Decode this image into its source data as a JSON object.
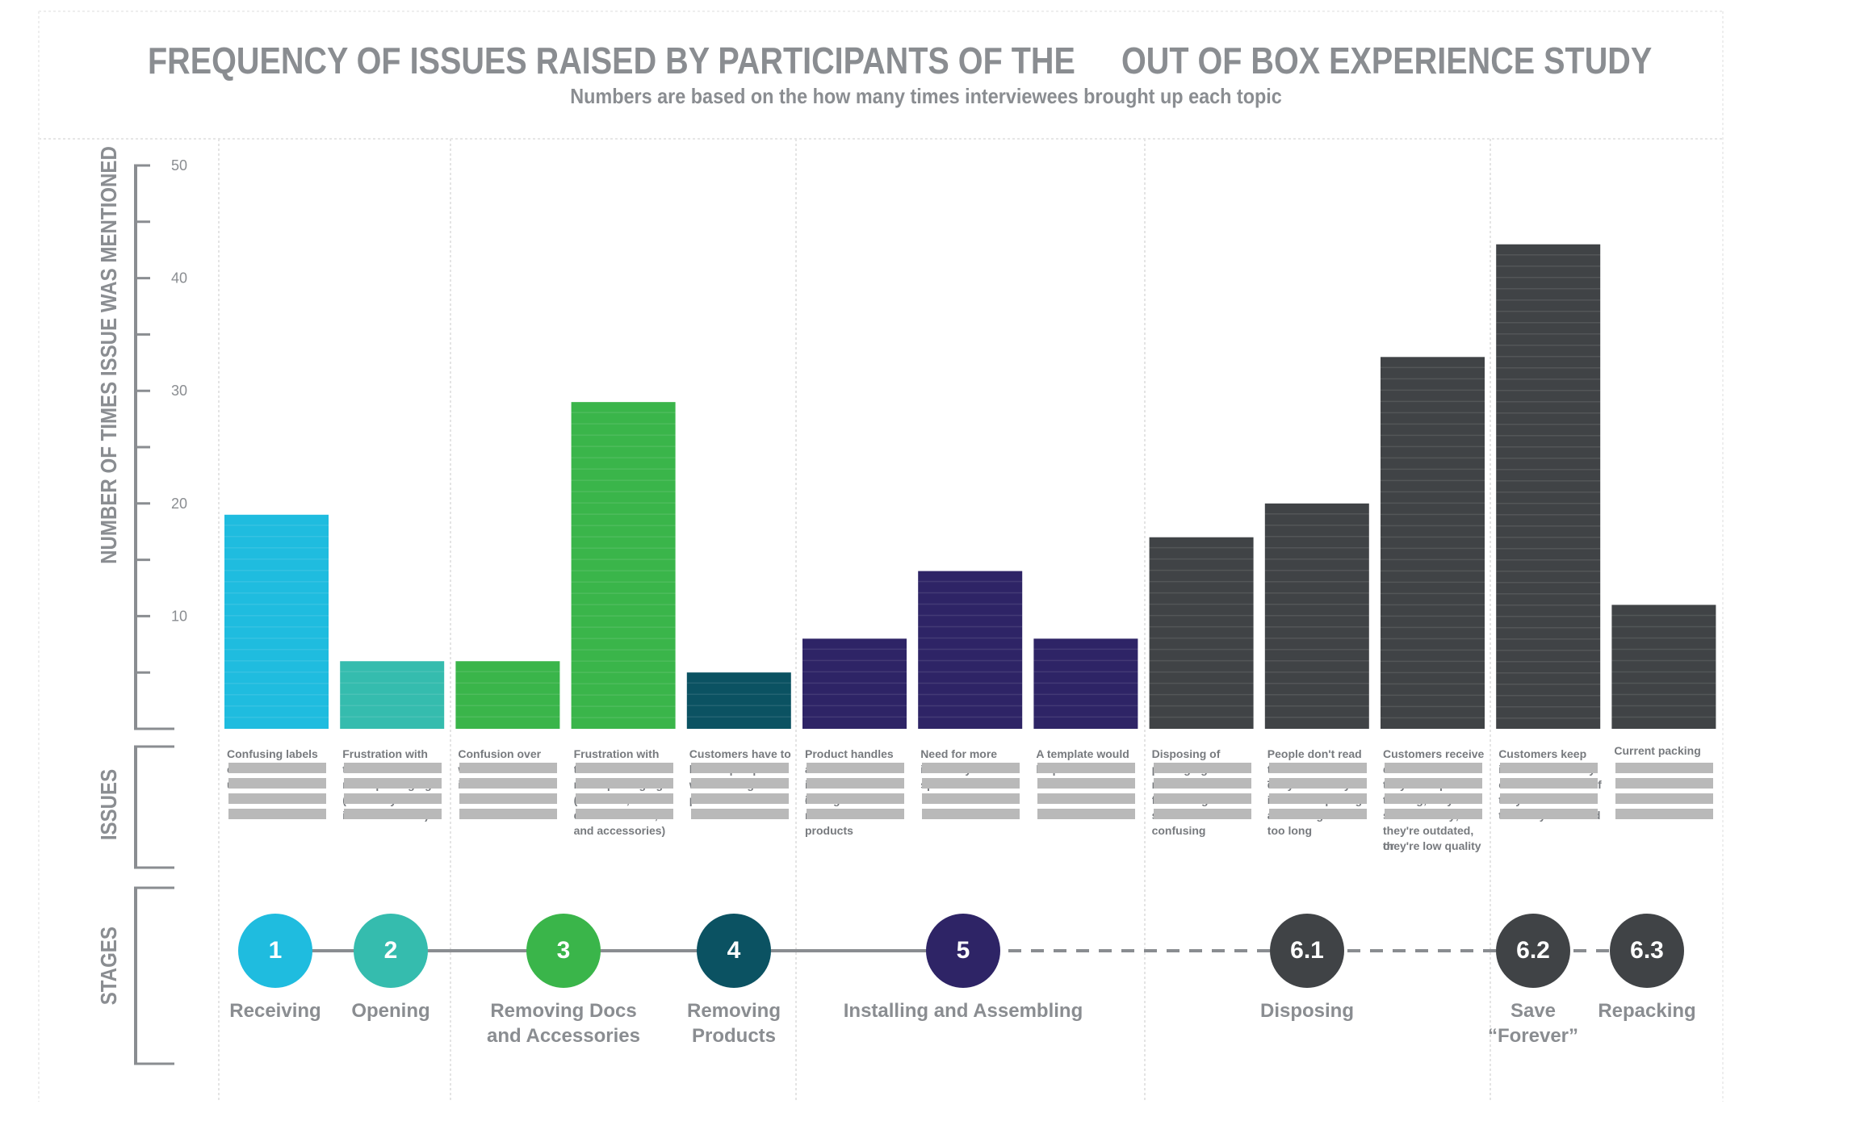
{
  "title": {
    "part1": "FREQUENCY OF ISSUES RAISED BY PARTICIPANTS OF THE",
    "part2": "OUT OF BOX EXPERIENCE STUDY",
    "subtitle": "Numbers are based on the how many times interviewees brought up each topic"
  },
  "section_labels": {
    "y_axis": "NUMBER OF TIMES ISSUE WAS MENTIONED",
    "issues": "ISSUES",
    "stages": "STAGES"
  },
  "colors": {
    "receiving": "#1fbcdf",
    "opening": "#35bcae",
    "docs": "#3ab54a",
    "removing": "#0b5262",
    "installing": "#2e2466",
    "disposing": "#404346",
    "axis": "#8a8d91",
    "redaction": "#b9b9b9"
  },
  "chart_data": {
    "type": "bar",
    "ylabel": "NUMBER OF TIMES ISSUE WAS MENTIONED",
    "ylim": [
      0,
      50
    ],
    "yticks": [
      10,
      20,
      30,
      40,
      50
    ],
    "categories": [
      "Confusing labels",
      "Frustration with too much packaging (too many boxes inside of boxes)",
      "Confusion over",
      "Frustration with too much packaging (Products, documentation, and accessories)",
      "Customers have to hold flaps open while taking the product out",
      "Product handles",
      "Need for more",
      "A template would help installation",
      "Disposing of packaging materials is frustrating and sometimes confusing",
      "People don't read the documentation",
      "Customers receive",
      "Customers keep",
      "Current packing"
    ],
    "values": [
      19,
      6,
      6,
      29,
      5,
      8,
      14,
      8,
      17,
      20,
      33,
      43,
      11
    ],
    "bar_colors": [
      "#1fbcdf",
      "#35bcae",
      "#3ab54a",
      "#3ab54a",
      "#0b5262",
      "#2e2466",
      "#2e2466",
      "#2e2466",
      "#404346",
      "#404346",
      "#404346",
      "#404346",
      "#404346"
    ]
  },
  "issues": [
    {
      "first": "Confusing labels",
      "rest": [
        "customers can't",
        "understand"
      ]
    },
    {
      "first": "Frustration with too",
      "rest": [
        "much packaging",
        "(too many boxes",
        "inside of boxes)"
      ]
    },
    {
      "first": "Confusion over",
      "rest": [
        "what the extra",
        "items are for"
      ]
    },
    {
      "first": "Frustration with too",
      "rest": [
        "much packaging",
        "(Products,",
        "documentation,",
        "and accessories)"
      ]
    },
    {
      "first": "Customers have to",
      "rest": [
        "hold flaps open",
        "while taking the",
        "product out"
      ]
    },
    {
      "first": "Product handles",
      "rest": [
        "are located behind",
        "inaccessible during",
        "installation or are",
        "not included on",
        "products"
      ]
    },
    {
      "first": "Need for more",
      "rest": [
        "inventory label",
        "space"
      ]
    },
    {
      "first": "A template would",
      "rest": [
        "help installation"
      ]
    },
    {
      "first": "Disposing of",
      "rest": [
        "packaging",
        "materials is",
        "frustrating and",
        "sometimes",
        "confusing"
      ]
    },
    {
      "first": "People don't read",
      "rest": [
        "the documentation.",
        "They don't recycle",
        "it either - opening",
        "all the bags takes",
        "too long"
      ]
    },
    {
      "first": "Customers receive",
      "rest": [
        "documents that",
        "they end up",
        "tossing; they have",
        "some already;",
        "they're outdated, or",
        "they're low quality"
      ]
    },
    {
      "first": "Customers keep",
      "rest": [
        "items for a variety",
        "of reasons - even if",
        "they aren't sure",
        "that they'll be used"
      ]
    },
    {
      "first": "Current packing",
      "rest": [
        "",
        "",
        "",
        ""
      ]
    }
  ],
  "stages": [
    {
      "num": "1",
      "name": "Receiving"
    },
    {
      "num": "2",
      "name": "Opening"
    },
    {
      "num": "3",
      "name": "Removing Docs and Accessories"
    },
    {
      "num": "4",
      "name": "Removing Products"
    },
    {
      "num": "5",
      "name": "Installing and Assembling"
    },
    {
      "num": "6.1",
      "name": "Disposing"
    },
    {
      "num": "6.2",
      "name": "Save “Forever”"
    },
    {
      "num": "6.3",
      "name": "Repacking"
    }
  ]
}
